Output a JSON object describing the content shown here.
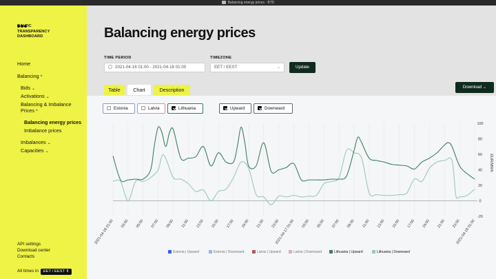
{
  "window": {
    "title": "Balancing energy prices - BTD"
  },
  "sidebar": {
    "logo_lines": [
      "BALTIC",
      "TRANSPARENCY",
      "DASHBOARD"
    ],
    "nav": {
      "home": "Home",
      "balancing": "Balancing",
      "bids": "Bids",
      "activations": "Activations",
      "bal_imb_prices_1": "Balancing & Imbalance",
      "bal_imb_prices_2": "Prices",
      "balancing_energy_prices": "Balancing energy prices",
      "imbalance_prices": "Imbalance prices",
      "imbalances": "Imbalances",
      "capacities": "Capacities"
    },
    "bottom_links": [
      "API settings",
      "Download center",
      "Contacts"
    ],
    "all_times_label": "All times in",
    "all_times_value": "EET / EEST"
  },
  "header": {
    "title": "Balancing energy prices",
    "time_period_label": "TIME PERIOD",
    "time_period_value": "2021-04-16 01:00 - 2021-04-18 01:00",
    "timezone_label": "TIMEZONE",
    "timezone_value": "EET / EEST",
    "update_button": "Update"
  },
  "tabs": {
    "table": "Table",
    "chart": "Chart",
    "description": "Description"
  },
  "download_button": "Download",
  "filters": {
    "countries": [
      {
        "label": "Estonia",
        "checked": false,
        "border": "#7a9ad8"
      },
      {
        "label": "Latvia",
        "checked": false,
        "border": "#e28a9a"
      },
      {
        "label": "Lithuania",
        "checked": true,
        "border": "#2e7a5a"
      }
    ],
    "directions": [
      {
        "label": "Upward",
        "checked": true
      },
      {
        "label": "Downward",
        "checked": true
      }
    ]
  },
  "colors": {
    "lt_up": "#3c7d5b",
    "lt_down": "#9cc8b2",
    "accent_yellow": "#eef345",
    "dark_button": "#0f2a1e"
  },
  "chart_data": {
    "type": "line",
    "ylabel": "EUR/MWh",
    "ylim": [
      -20,
      100
    ],
    "yticks": [
      -20,
      0,
      20,
      40,
      60,
      80,
      100
    ],
    "x_tick_labels": [
      "2021-04-16 01:00",
      "03:00",
      "05:00",
      "07:00",
      "09:00",
      "11:00",
      "13:00",
      "15:00",
      "17:00",
      "19:00",
      "21:00",
      "23:00",
      "2021-04-17 01:00",
      "03:00",
      "05:00",
      "07:00",
      "09:00",
      "11:00",
      "13:00",
      "15:00",
      "17:00",
      "19:00",
      "21:00",
      "23:00",
      "2021-04-18 01:00"
    ],
    "x_hours": [
      0,
      2,
      4,
      6,
      8,
      10,
      12,
      14,
      16,
      18,
      20,
      22,
      24,
      26,
      28,
      30,
      32,
      34,
      36,
      38,
      40,
      42,
      44,
      46,
      48
    ],
    "series": [
      {
        "name": "Lithuania | Upward",
        "hours": [
          0,
          1,
          2,
          3,
          4,
          5,
          5.5,
          6,
          6.5,
          7,
          7.5,
          8,
          9,
          10,
          11,
          12,
          13,
          14,
          15,
          16,
          16.5,
          17,
          17.5,
          18,
          19,
          20,
          21,
          22,
          23,
          24,
          25,
          26,
          27,
          28,
          29,
          30,
          31,
          32,
          32.5,
          33,
          34,
          35,
          36,
          37,
          38,
          39,
          40,
          41,
          42,
          43,
          44,
          44.5,
          45,
          46,
          47,
          48
        ],
        "values": [
          58,
          27,
          27,
          28,
          28,
          40,
          72,
          95,
          88,
          70,
          88,
          92,
          55,
          55,
          57,
          70,
          45,
          62,
          50,
          50,
          70,
          95,
          75,
          45,
          45,
          75,
          38,
          40,
          43,
          48,
          27,
          27,
          27,
          27,
          28,
          28,
          32,
          65,
          82,
          75,
          55,
          52,
          50,
          47,
          46,
          45,
          41,
          50,
          55,
          62,
          72,
          75,
          70,
          45,
          35,
          28
        ]
      },
      {
        "name": "Lithuania | Downward",
        "hours": [
          0,
          1,
          2,
          3,
          4,
          5,
          6,
          6.5,
          7,
          8,
          9,
          10,
          11,
          12,
          13,
          14,
          15,
          16,
          17,
          18,
          19,
          20,
          21,
          22,
          23,
          24,
          25,
          26,
          27,
          28,
          29,
          30,
          31,
          32,
          33,
          34,
          35,
          36,
          37,
          38,
          39,
          40,
          41,
          42,
          43,
          44,
          45,
          45.5,
          46,
          47,
          48
        ],
        "values": [
          25,
          25,
          0,
          25,
          25,
          30,
          40,
          58,
          55,
          30,
          28,
          22,
          12,
          14,
          0,
          12,
          15,
          30,
          50,
          42,
          8,
          5,
          -5,
          6,
          5,
          7,
          5,
          6,
          7,
          22,
          25,
          30,
          65,
          62,
          55,
          10,
          8,
          7,
          7,
          8,
          10,
          28,
          25,
          42,
          50,
          52,
          52,
          7,
          5,
          7,
          15
        ]
      }
    ]
  },
  "legend": [
    {
      "label": "Estonia | Upward",
      "color": "#3a5fe0"
    },
    {
      "label": "Estonia | Downward",
      "color": "#9bb1ee"
    },
    {
      "label": "Latvia | Upward",
      "color": "#b05a66"
    },
    {
      "label": "Latvia | Downward",
      "color": "#e7aab2"
    },
    {
      "label": "Lithuania | Upward",
      "color": "#3c7d5b"
    },
    {
      "label": "Lithuania | Downward",
      "color": "#9cc8b2"
    }
  ]
}
